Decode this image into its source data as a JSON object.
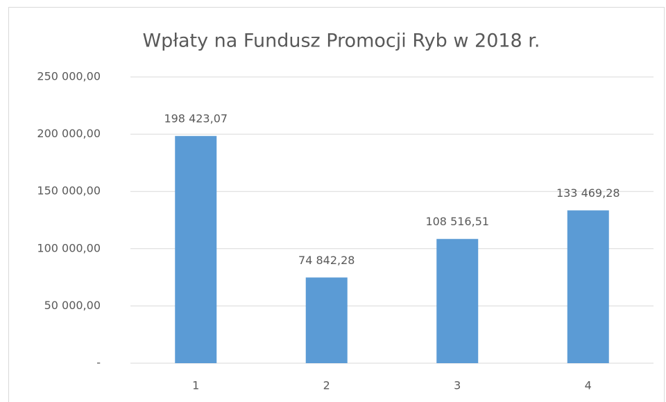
{
  "chart_data": {
    "type": "bar",
    "title": "Wpłaty na Fundusz Promocji Ryb w 2018 r.",
    "categories": [
      "1",
      "2",
      "3",
      "4"
    ],
    "values": [
      198423.07,
      74842.28,
      108516.51,
      133469.28
    ],
    "value_labels": [
      "198 423,07",
      "74 842,28",
      "108 516,51",
      "133 469,28"
    ],
    "color": "#5b9bd5",
    "ylim": [
      0,
      250000
    ],
    "yticks": [
      {
        "value": 0,
        "label": "-"
      },
      {
        "value": 50000,
        "label": "50 000,00"
      },
      {
        "value": 100000,
        "label": "100 000,00"
      },
      {
        "value": 150000,
        "label": "150 000,00"
      },
      {
        "value": 200000,
        "label": "200 000,00"
      },
      {
        "value": 250000,
        "label": "250 000,00"
      }
    ],
    "grid": true
  }
}
